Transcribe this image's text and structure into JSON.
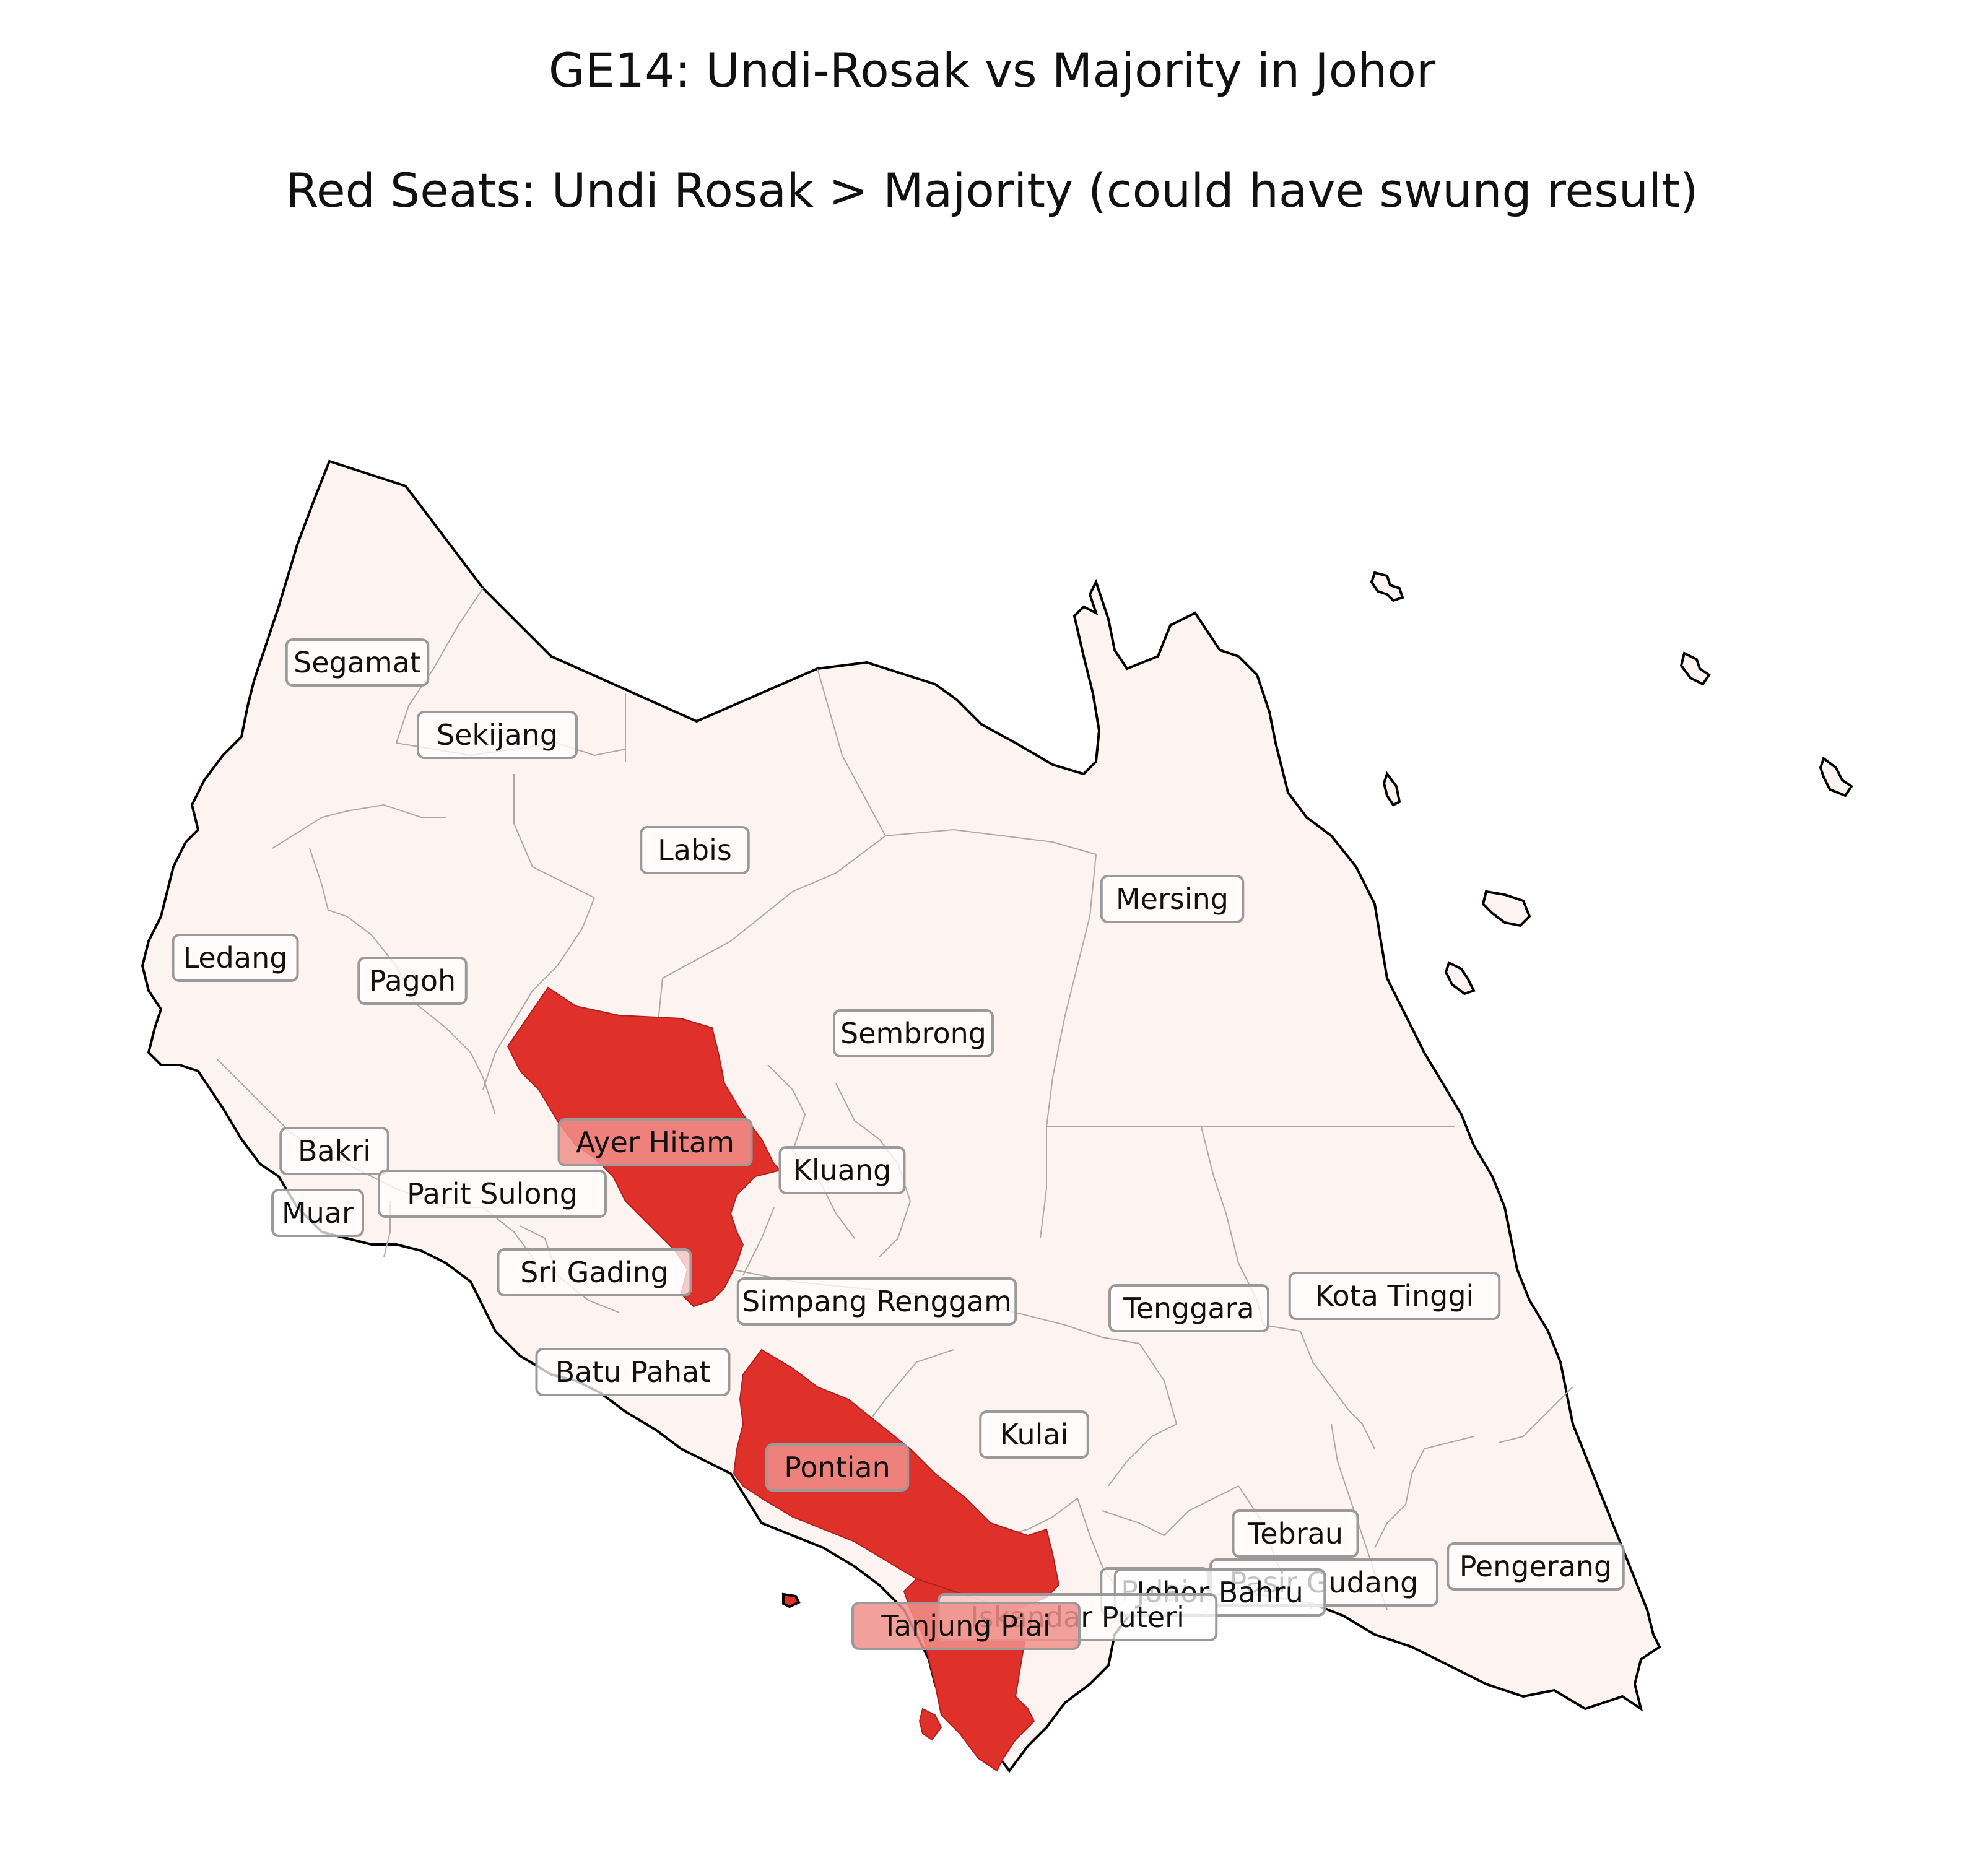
{
  "title": "GE14: Undi-Rosak vs Majority in Johor",
  "subtitle": "Red Seats: Undi Rosak > Majority (could have swung result)",
  "colors": {
    "red_seat": "#e0302a",
    "other_seat": "#fdf3f0",
    "state_border": "#000000",
    "internal_border": "#b0a8a6",
    "label_highlight_red": "#f08f8a"
  },
  "seats": [
    {
      "name": "Segamat",
      "red": false
    },
    {
      "name": "Sekijang",
      "red": false
    },
    {
      "name": "Labis",
      "red": false
    },
    {
      "name": "Mersing",
      "red": false
    },
    {
      "name": "Ledang",
      "red": false
    },
    {
      "name": "Pagoh",
      "red": false
    },
    {
      "name": "Sembrong",
      "red": false
    },
    {
      "name": "Ayer Hitam",
      "red": true
    },
    {
      "name": "Kluang",
      "red": false
    },
    {
      "name": "Bakri",
      "red": false
    },
    {
      "name": "Parit Sulong",
      "red": false
    },
    {
      "name": "Muar",
      "red": false
    },
    {
      "name": "Sri Gading",
      "red": false
    },
    {
      "name": "Simpang Renggam",
      "red": false
    },
    {
      "name": "Tenggara",
      "red": false
    },
    {
      "name": "Kota Tinggi",
      "red": false
    },
    {
      "name": "Batu Pahat",
      "red": false
    },
    {
      "name": "Kulai",
      "red": false
    },
    {
      "name": "Pontian",
      "red": true
    },
    {
      "name": "Tebrau",
      "red": false
    },
    {
      "name": "Pasir Gudang",
      "red": false
    },
    {
      "name": "Pengerang",
      "red": false
    },
    {
      "name": "Pulai",
      "red": false
    },
    {
      "name": "Johor Bahru",
      "red": false
    },
    {
      "name": "Iskandar Puteri",
      "red": false
    },
    {
      "name": "Tanjung Piai",
      "red": true
    }
  ]
}
